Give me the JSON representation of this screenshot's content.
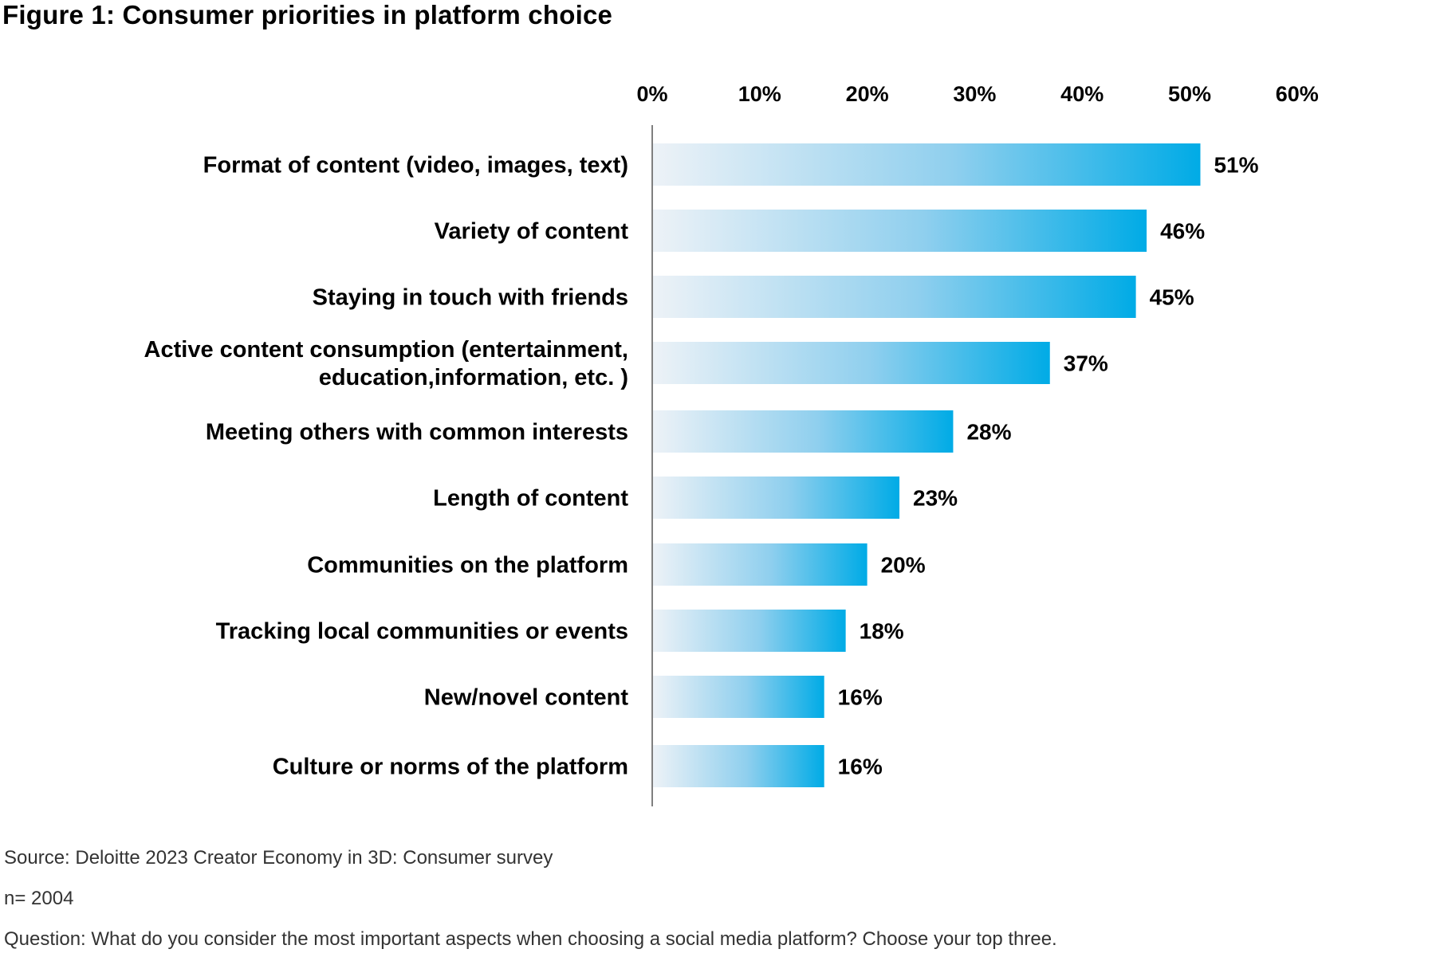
{
  "title": "Figure 1: Consumer priorities in platform choice",
  "chart_data": {
    "type": "bar",
    "orientation": "horizontal",
    "title": "Figure 1: Consumer priorities in platform choice",
    "xlabel": "",
    "ylabel": "",
    "xlim": [
      0,
      60
    ],
    "tick_values": [
      0,
      10,
      20,
      30,
      40,
      50,
      60
    ],
    "tick_labels": [
      "0%",
      "10%",
      "20%",
      "30%",
      "40%",
      "50%",
      "60%"
    ],
    "axis_position": "top",
    "grid": false,
    "categories": [
      [
        "Format of content (video, images, text)"
      ],
      [
        "Variety of content"
      ],
      [
        "Staying in touch with friends"
      ],
      [
        "Active content consumption (entertainment,",
        "education,information, etc. )"
      ],
      [
        "Meeting others with common interests"
      ],
      [
        "Length of content"
      ],
      [
        "Communities on the platform"
      ],
      [
        "Tracking local communities or events"
      ],
      [
        "New/novel content"
      ],
      [
        "Culture or norms of the platform"
      ]
    ],
    "values": [
      51,
      46,
      45,
      37,
      28,
      23,
      20,
      18,
      16,
      16
    ],
    "value_labels": [
      "51%",
      "46%",
      "45%",
      "37%",
      "28%",
      "23%",
      "20%",
      "18%",
      "16%",
      "16%"
    ],
    "colors": {
      "bar_start": "#edf2f7",
      "bar_mid": "#8fcfee",
      "bar_end": "#00abe6",
      "axis": "#555555",
      "text": "#000000"
    }
  },
  "notes": {
    "source": "Source: Deloitte 2023 Creator Economy in 3D: Consumer survey",
    "n": "n= 2004",
    "question": "Question: What do you consider the most important aspects when choosing a social media platform? Choose your top three."
  }
}
